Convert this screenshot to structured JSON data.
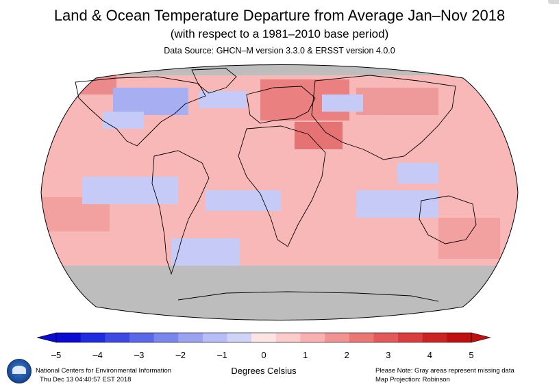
{
  "header": {
    "title": "Land & Ocean Temperature Departure from Average Jan–Nov 2018",
    "subtitle": "(with respect to a 1981–2010 base period)",
    "source": "Data Source: GHCN–M version 3.3.0 & ERSST version 4.0.0"
  },
  "map": {
    "projection": "Robinson",
    "missing_color": "#bdbdbd",
    "coastline_color": "#000000"
  },
  "scale": {
    "ticks": [
      "–5",
      "–4",
      "–3",
      "–2",
      "–1",
      "0",
      "1",
      "2",
      "3",
      "4",
      "5"
    ],
    "colors": [
      "#0a0ad0",
      "#1e2cde",
      "#3c49e2",
      "#5a68e8",
      "#7a86ec",
      "#9ba3f0",
      "#b7bdf5",
      "#cfd3f8",
      "#fde4e4",
      "#fccbcb",
      "#f8b0b0",
      "#f19393",
      "#ea7676",
      "#e35a5a",
      "#d93d3d",
      "#cd2222",
      "#c00f0f"
    ],
    "unit_label": "Degrees Celsius"
  },
  "footer": {
    "org": "National Centers for Environmental Information",
    "timestamp": "Thu Dec 13 04:40:57 EST 2018",
    "note": "Please Note: Gray areas represent missing data",
    "projection": "Map Projection: Robinson",
    "logo_text": "NOAA"
  }
}
